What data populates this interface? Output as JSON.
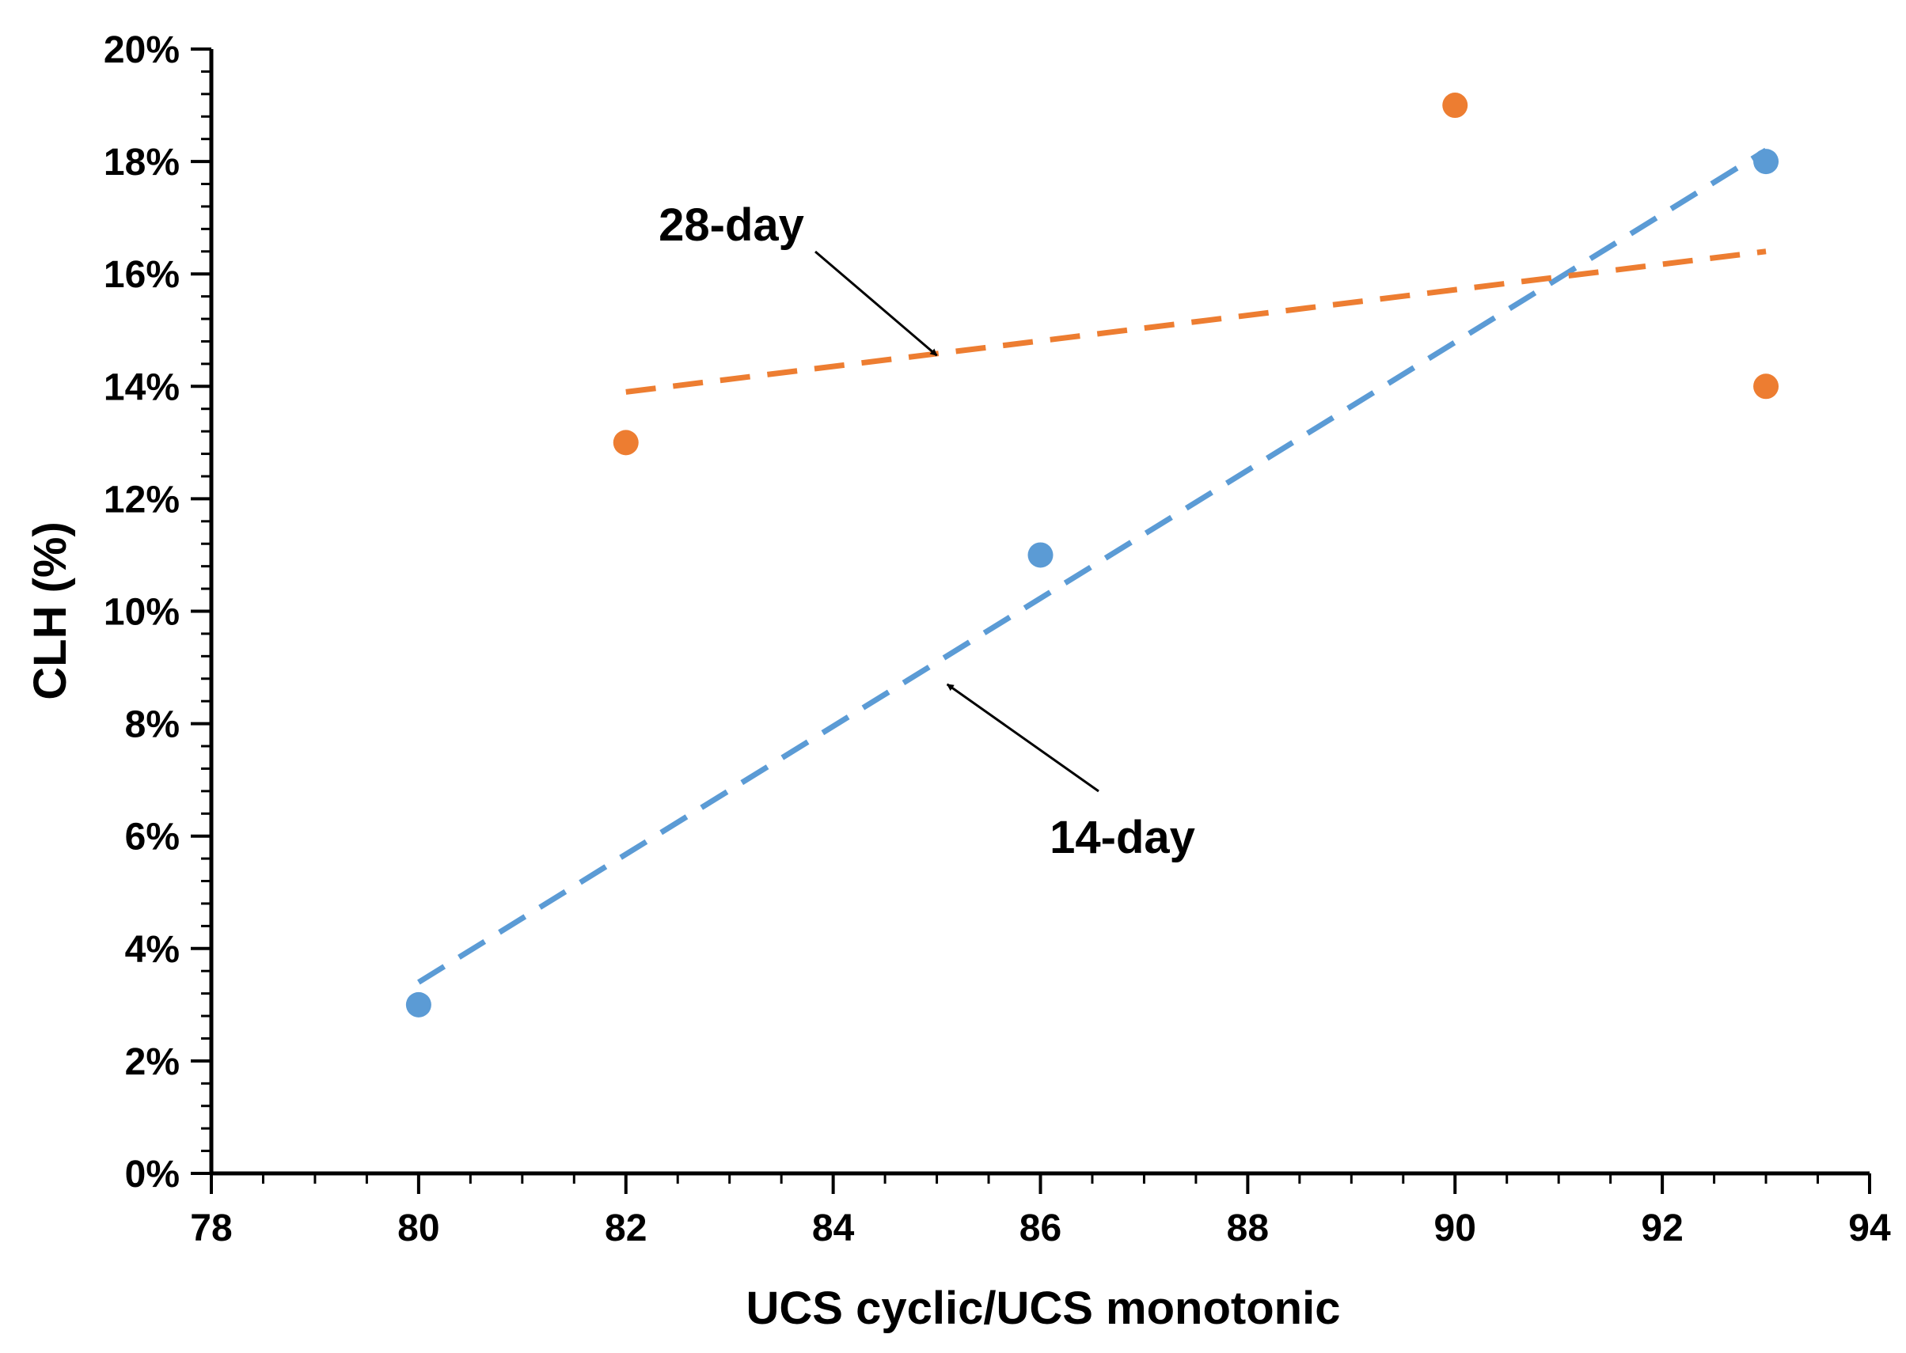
{
  "chart_data": {
    "type": "scatter",
    "title": "",
    "xlabel": "UCS cyclic/UCS monotonic",
    "ylabel": "CLH (%)",
    "xlim": [
      78,
      94
    ],
    "ylim": [
      0,
      20
    ],
    "x_ticks": [
      78,
      80,
      82,
      84,
      86,
      88,
      90,
      92,
      94
    ],
    "x_tick_labels": [
      "78",
      "80",
      "82",
      "84",
      "86",
      "88",
      "90",
      "92",
      "94"
    ],
    "y_ticks": [
      0,
      2,
      4,
      6,
      8,
      10,
      12,
      14,
      16,
      18,
      20
    ],
    "y_tick_labels": [
      "0%",
      "2%",
      "4%",
      "6%",
      "8%",
      "10%",
      "12%",
      "14%",
      "16%",
      "18%",
      "20%"
    ],
    "grid": false,
    "legend": "none",
    "series": [
      {
        "name": "14-day",
        "color": "#5b9bd5",
        "x": [
          80,
          86,
          93
        ],
        "y": [
          3,
          11,
          18
        ],
        "trendline": {
          "type": "linear",
          "style": "dashed",
          "x_range": [
            80,
            93
          ],
          "y_range": [
            3.4,
            18.2
          ]
        }
      },
      {
        "name": "28-day",
        "color": "#ed7d31",
        "x": [
          82,
          90,
          93
        ],
        "y": [
          13,
          19,
          14
        ],
        "trendline": {
          "type": "linear",
          "style": "dashed",
          "x_range": [
            82,
            93
          ],
          "y_range": [
            13.9,
            16.4
          ]
        }
      }
    ],
    "annotations": [
      {
        "text": "28-day",
        "series": "28-day",
        "points_to": {
          "x": 85,
          "y": 14.55
        }
      },
      {
        "text": "14-day",
        "series": "14-day",
        "points_to": {
          "x": 85.1,
          "y": 8.7
        }
      }
    ]
  }
}
